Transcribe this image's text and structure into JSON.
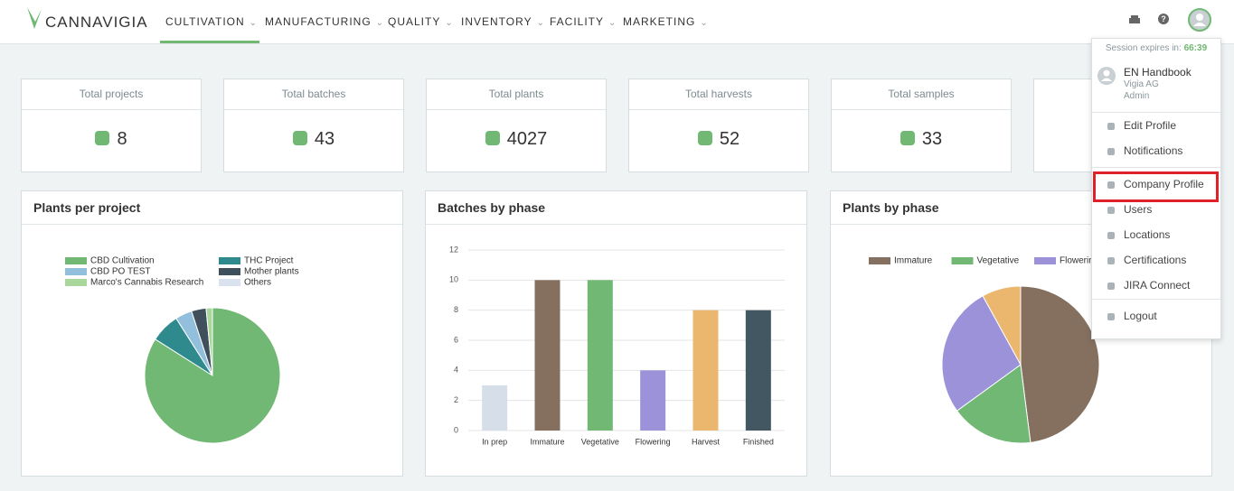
{
  "header": {
    "logo": "CANNAVIGIA",
    "nav": [
      "CULTIVATION",
      "MANUFACTURING",
      "QUALITY",
      "INVENTORY",
      "FACILITY",
      "MARKETING"
    ]
  },
  "stats": [
    {
      "label": "Total projects",
      "value": 8
    },
    {
      "label": "Total batches",
      "value": 43
    },
    {
      "label": "Total plants",
      "value": 4027
    },
    {
      "label": "Total harvests",
      "value": 52
    },
    {
      "label": "Total samples",
      "value": 33
    }
  ],
  "charts": [
    {
      "type": "pie",
      "title": "Plants per project",
      "categories": [
        "CBD Cultivation",
        "THC Project",
        "CBD PO TEST",
        "Mother plants",
        "Marco's Cannabis Research",
        "Others"
      ],
      "values": [
        84,
        7,
        4,
        3.5,
        1.5,
        0
      ],
      "colors": [
        "#70b873",
        "#2f8a8e",
        "#92bfdc",
        "#3f4f5c",
        "#a9d69a",
        "#d9e2ee"
      ],
      "legend": "columns"
    },
    {
      "type": "bar",
      "title": "Batches by phase",
      "categories": [
        "In prep",
        "Immature",
        "Vegetative",
        "Flowering",
        "Harvest",
        "Finished"
      ],
      "values": [
        3,
        10,
        10,
        4,
        8,
        8
      ],
      "colors": [
        "#d6dee9",
        "#857060",
        "#70b873",
        "#9b92d9",
        "#ebb66e",
        "#435763"
      ],
      "ylim": [
        0,
        12
      ],
      "yticks": [
        0,
        2,
        4,
        6,
        8,
        10,
        12
      ],
      "grid": true
    },
    {
      "type": "pie",
      "title": "Plants by phase",
      "categories": [
        "Immature",
        "Vegetative",
        "Flowering",
        null
      ],
      "values": [
        48,
        17,
        27,
        8
      ],
      "colors": [
        "#857060",
        "#70b873",
        "#9b92d9",
        "#ebb66e"
      ],
      "legend": "row"
    }
  ],
  "menu": {
    "session_label": "Session expires in:",
    "session_time": "66:39",
    "user": {
      "name": "EN Handbook",
      "company": "Vigia AG",
      "role": "Admin"
    },
    "groups": [
      [
        "Edit Profile",
        "Notifications"
      ],
      [
        "Company Profile",
        "Users",
        "Locations",
        "Certifications",
        "JIRA Connect"
      ],
      [
        "Logout"
      ]
    ]
  }
}
